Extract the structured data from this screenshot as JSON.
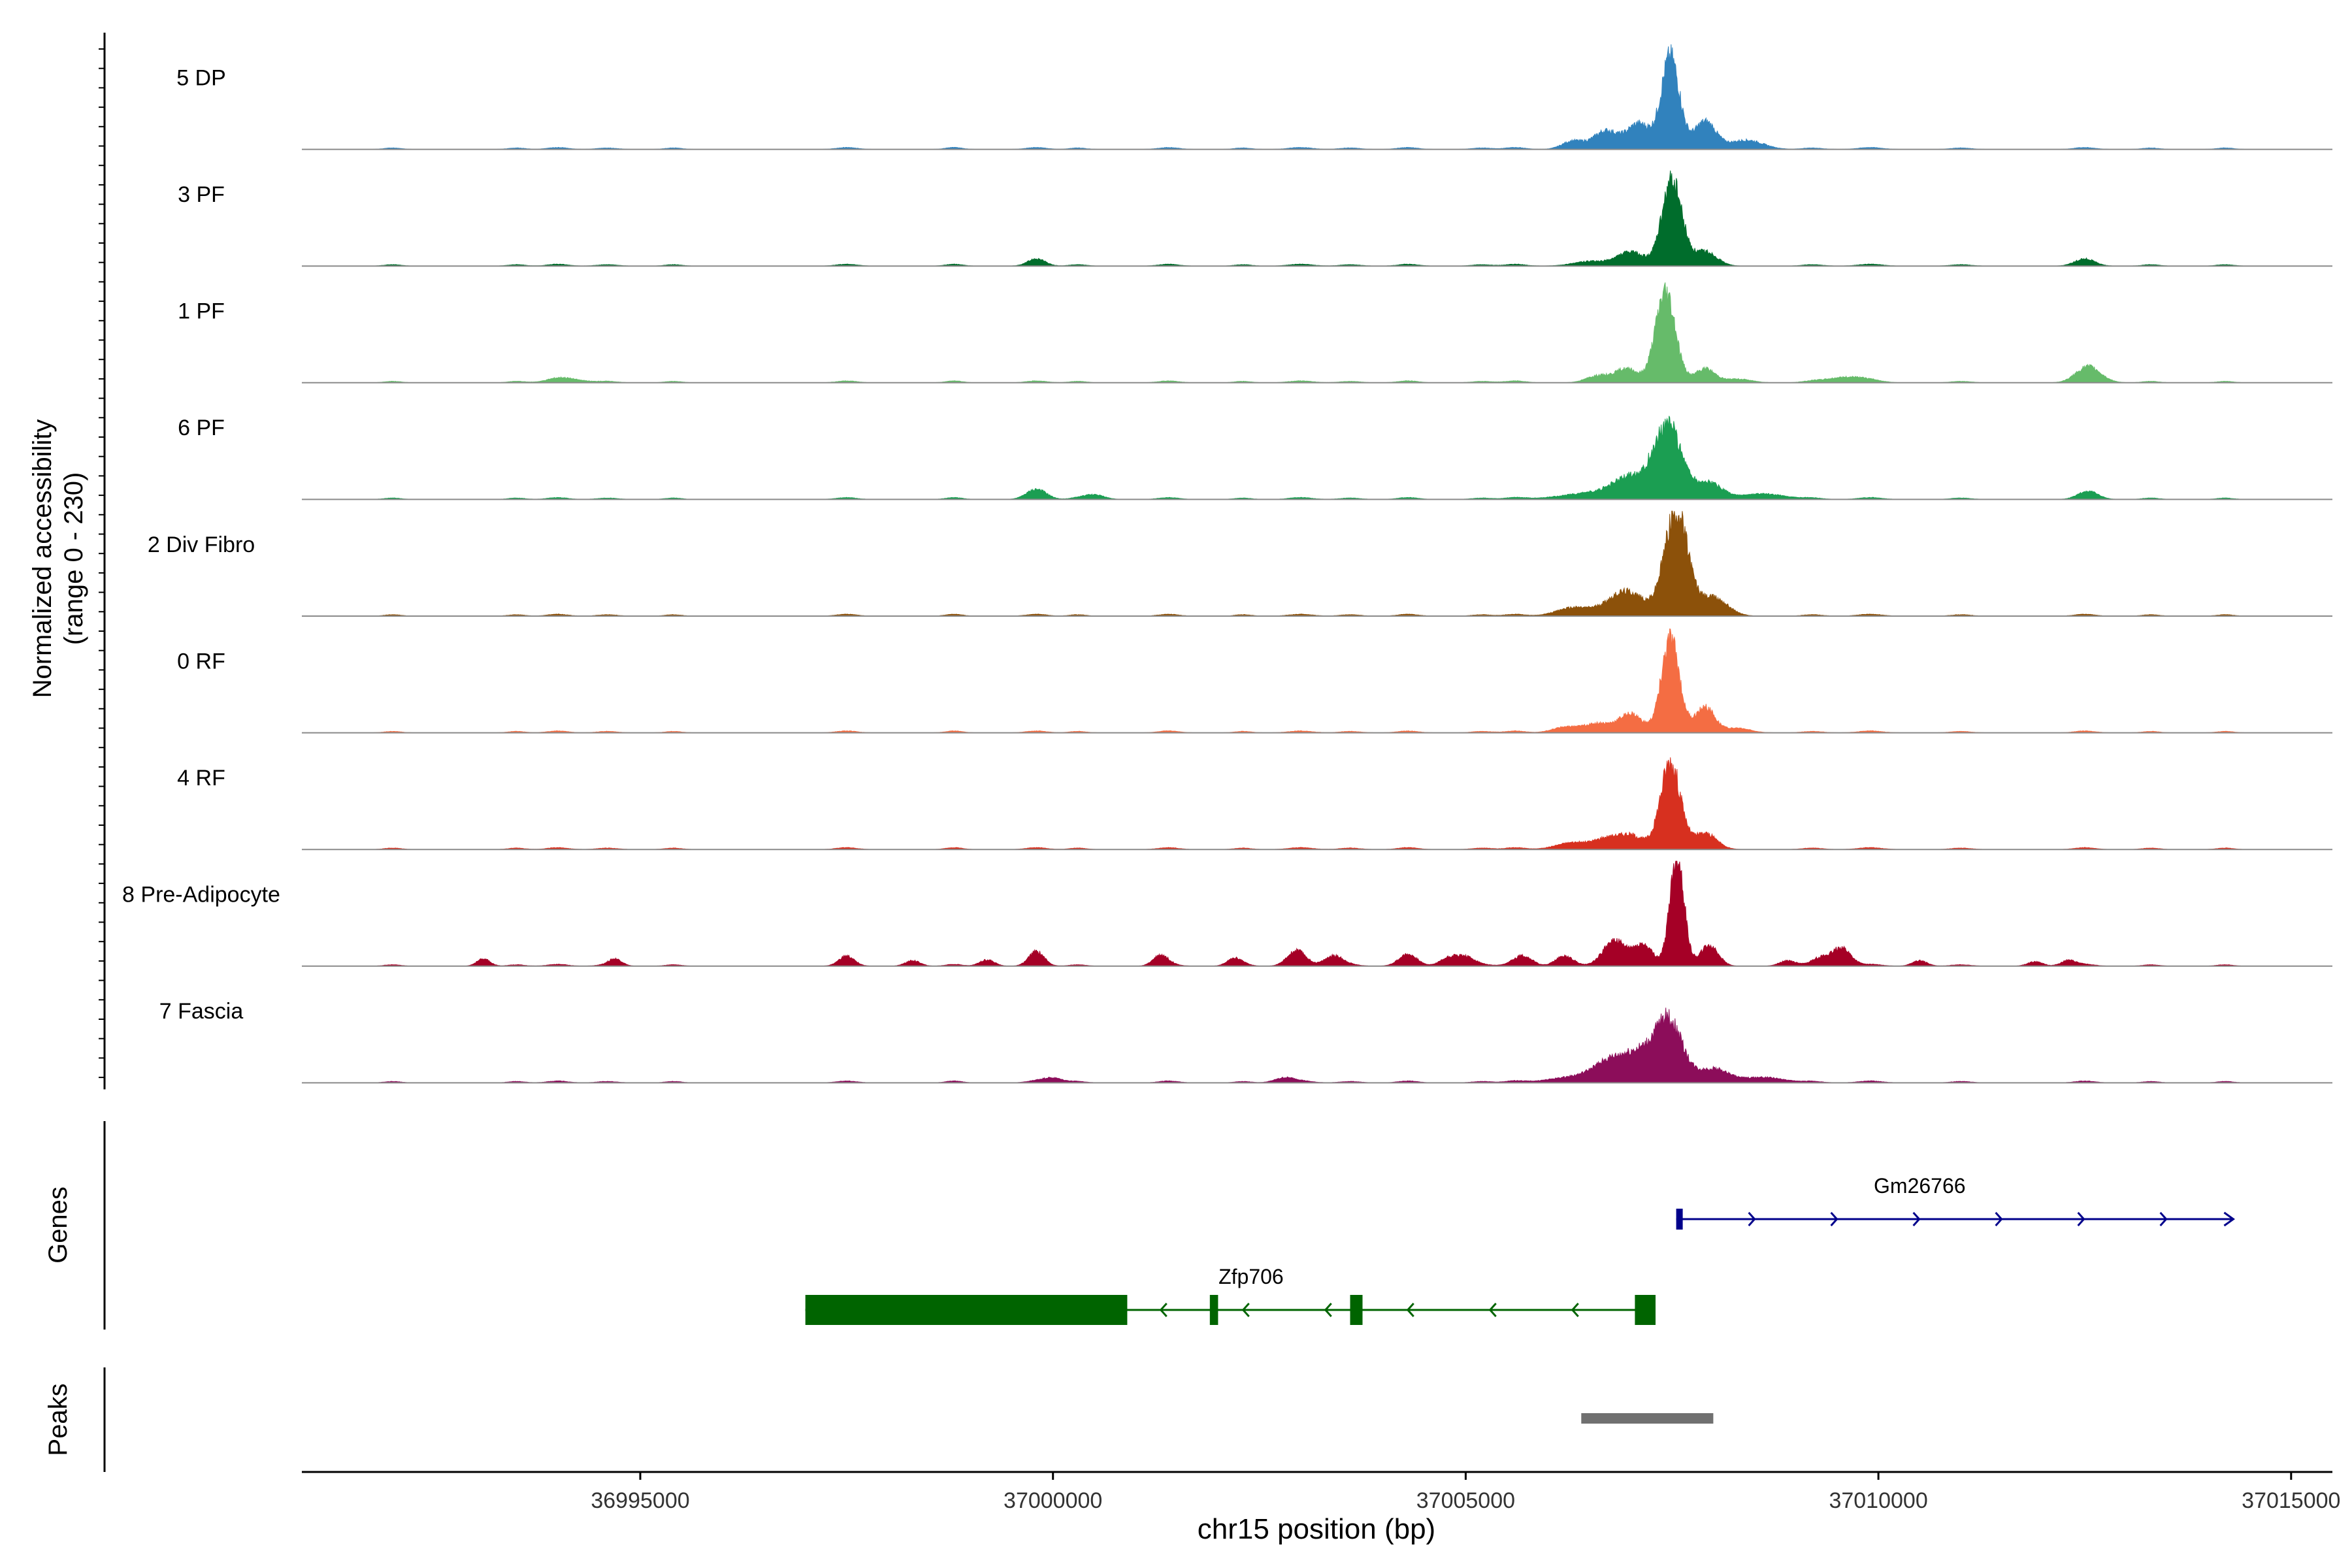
{
  "chart_data": {
    "type": "area",
    "title": "",
    "ylabel_line1": "Normalized accessibility",
    "ylabel_line2": "(range 0 - 230)",
    "ylim": [
      0,
      230
    ],
    "xlabel": "chr15 position (bp)",
    "xlim": [
      36990900,
      37015500
    ],
    "x_ticks": [
      36995000,
      37000000,
      37005000,
      37010000,
      37015000
    ],
    "x_tick_labels": [
      "36995000",
      "37000000",
      "37005000",
      "37010000",
      "37015000"
    ],
    "background_peaks": [
      [
        36992000,
        3,
        100
      ],
      [
        36993500,
        3,
        100
      ],
      [
        36994000,
        4,
        120
      ],
      [
        36994600,
        3,
        120
      ],
      [
        36995400,
        3,
        100
      ],
      [
        36997500,
        4,
        120
      ],
      [
        36998800,
        4,
        100
      ],
      [
        36999800,
        4,
        120
      ],
      [
        37000300,
        3,
        100
      ],
      [
        37001400,
        4,
        120
      ],
      [
        37002300,
        3,
        100
      ],
      [
        37003000,
        4,
        140
      ],
      [
        37003600,
        3,
        120
      ],
      [
        37004300,
        4,
        120
      ],
      [
        37005200,
        3,
        120
      ],
      [
        37005600,
        4,
        120
      ],
      [
        37009200,
        3,
        120
      ],
      [
        37009900,
        4,
        140
      ],
      [
        37011000,
        3,
        120
      ],
      [
        37012500,
        4,
        120
      ],
      [
        37013300,
        3,
        100
      ],
      [
        37014200,
        3,
        100
      ]
    ],
    "series": [
      {
        "name": "5 DP",
        "color": "#3182bd",
        "peak_x": 37007480,
        "peak_height": 200,
        "peak_width": 110,
        "side_peaks": [
          [
            37007100,
            55,
            140
          ],
          [
            37007900,
            60,
            130
          ],
          [
            37006700,
            40,
            150
          ],
          [
            37008400,
            20,
            200
          ],
          [
            37006300,
            18,
            130
          ]
        ],
        "extra": []
      },
      {
        "name": "3 PF",
        "color": "#006d2c",
        "peak_x": 37007500,
        "peak_height": 185,
        "peak_width": 120,
        "side_peaks": [
          [
            37007000,
            30,
            170
          ],
          [
            37007900,
            32,
            140
          ],
          [
            37006500,
            10,
            200
          ]
        ],
        "extra": [
          [
            36999800,
            12,
            100
          ],
          [
            37012500,
            12,
            120
          ]
        ]
      },
      {
        "name": "1 PF",
        "color": "#66bb6a",
        "peak_x": 37007420,
        "peak_height": 200,
        "peak_width": 120,
        "side_peaks": [
          [
            37006950,
            30,
            140
          ],
          [
            37007900,
            30,
            120
          ],
          [
            37006600,
            15,
            140
          ],
          [
            37008300,
            8,
            160
          ]
        ],
        "extra": [
          [
            37012550,
            32,
            150
          ],
          [
            37009600,
            12,
            220
          ],
          [
            36994100,
            8,
            200
          ]
        ]
      },
      {
        "name": "6 PF",
        "color": "#1b9e52",
        "peak_x": 37007450,
        "peak_height": 160,
        "peak_width": 170,
        "side_peaks": [
          [
            37007000,
            40,
            200
          ],
          [
            37007950,
            35,
            160
          ],
          [
            37006600,
            15,
            400
          ],
          [
            37008600,
            12,
            260
          ]
        ],
        "extra": [
          [
            36999800,
            18,
            120
          ],
          [
            37012550,
            14,
            120
          ],
          [
            37000500,
            10,
            120
          ]
        ]
      },
      {
        "name": "2 Div Fibro",
        "color": "#8c510a",
        "peak_x": 37007550,
        "peak_height": 230,
        "peak_width": 140,
        "side_peaks": [
          [
            37007000,
            40,
            200
          ],
          [
            37008000,
            40,
            170
          ],
          [
            37006300,
            18,
            200
          ],
          [
            37006800,
            20,
            200
          ]
        ],
        "extra": []
      },
      {
        "name": "0 RF",
        "color": "#f46d43",
        "peak_x": 37007480,
        "peak_height": 200,
        "peak_width": 110,
        "side_peaks": [
          [
            37007000,
            40,
            140
          ],
          [
            37007900,
            55,
            120
          ],
          [
            37006600,
            20,
            170
          ],
          [
            37006200,
            12,
            150
          ],
          [
            37008300,
            10,
            150
          ]
        ],
        "extra": []
      },
      {
        "name": "4 RF",
        "color": "#d7301f",
        "peak_x": 37007480,
        "peak_height": 190,
        "peak_width": 120,
        "side_peaks": [
          [
            37007000,
            30,
            160
          ],
          [
            37007900,
            35,
            140
          ],
          [
            37006300,
            15,
            200
          ],
          [
            37006700,
            20,
            150
          ]
        ],
        "extra": []
      },
      {
        "name": "8 Pre-Adipocyte",
        "color": "#a50026",
        "peak_x": 37007560,
        "peak_height": 240,
        "peak_width": 85,
        "side_peaks": [
          [
            37006800,
            55,
            140
          ],
          [
            37007150,
            45,
            120
          ],
          [
            37007950,
            45,
            110
          ]
        ],
        "extra": [
          [
            36993100,
            16,
            80
          ],
          [
            36994700,
            14,
            80
          ],
          [
            36997500,
            18,
            90
          ],
          [
            36998300,
            12,
            90
          ],
          [
            36999200,
            14,
            90
          ],
          [
            36999800,
            28,
            90
          ],
          [
            37001300,
            22,
            90
          ],
          [
            37002200,
            16,
            90
          ],
          [
            37002950,
            30,
            110
          ],
          [
            37003400,
            22,
            110
          ],
          [
            37004300,
            22,
            110
          ],
          [
            37004800,
            18,
            110
          ],
          [
            37005000,
            18,
            110
          ],
          [
            37005700,
            20,
            110
          ],
          [
            37006200,
            22,
            110
          ],
          [
            37008900,
            12,
            100
          ],
          [
            37009300,
            16,
            100
          ],
          [
            37009550,
            40,
            110
          ],
          [
            37010500,
            12,
            90
          ],
          [
            37011900,
            10,
            90
          ],
          [
            37012300,
            12,
            90
          ]
        ]
      },
      {
        "name": "7 Fascia",
        "color": "#8c0d5a",
        "peak_x": 37007450,
        "peak_height": 140,
        "peak_width": 170,
        "side_peaks": [
          [
            37006800,
            50,
            220
          ],
          [
            37007100,
            40,
            150
          ],
          [
            37008000,
            30,
            180
          ],
          [
            37006300,
            12,
            300
          ],
          [
            37008600,
            12,
            250
          ]
        ],
        "extra": [
          [
            37002800,
            10,
            120
          ],
          [
            37000000,
            10,
            120
          ]
        ]
      }
    ]
  },
  "genes_panel": {
    "label": "Genes",
    "genes": [
      {
        "name": "Gm26766",
        "strand": "+",
        "color": "#00008b",
        "start": 37007550,
        "end": 37014300,
        "exons": [
          [
            37007550,
            37007620
          ]
        ]
      },
      {
        "name": "Zfp706",
        "strand": "-",
        "color": "#006400",
        "start": 36997000,
        "end": 37007300,
        "exons": [
          [
            36997000,
            37000900
          ],
          [
            37001900,
            37002000
          ],
          [
            37003600,
            37003750
          ],
          [
            37007050,
            37007300
          ]
        ]
      }
    ]
  },
  "peaks_panel": {
    "label": "Peaks",
    "color": "#707070",
    "peaks": [
      [
        37006400,
        37008000
      ]
    ]
  }
}
